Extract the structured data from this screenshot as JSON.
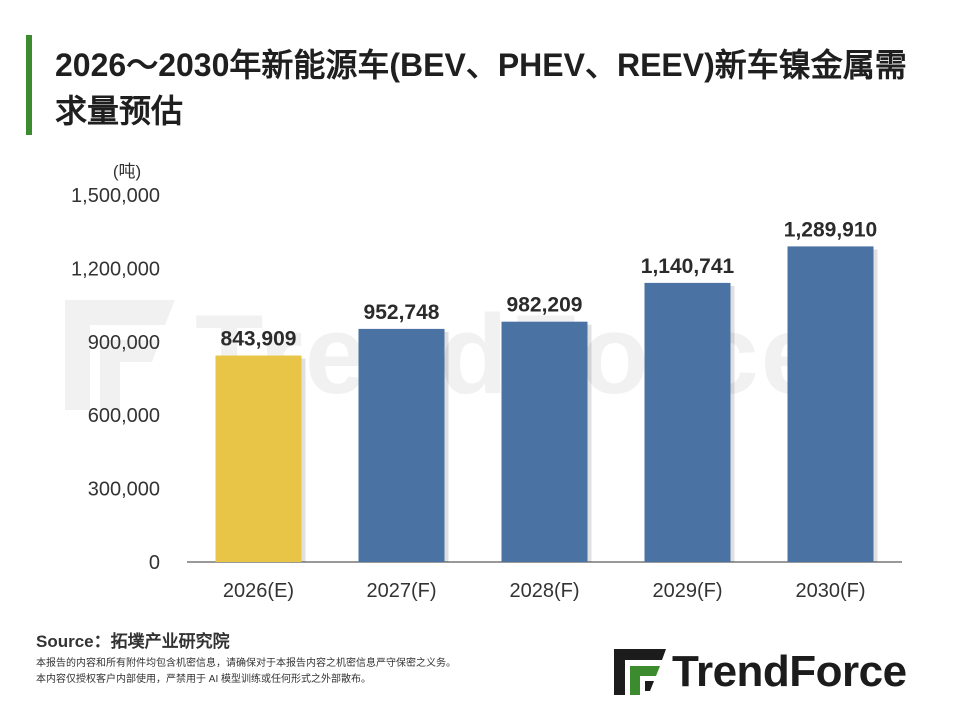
{
  "header": {
    "title": "2026～2030年新能源车(BEV、PHEV、REEV)新车镍金属需求量预估"
  },
  "chart_data": {
    "type": "bar",
    "title": "2026～2030年新能源车(BEV、PHEV、REEV)新车镍金属需求量预估",
    "ylabel": "(吨)",
    "xlabel": "",
    "categories": [
      "2026(E)",
      "2027(F)",
      "2028(F)",
      "2029(F)",
      "2030(F)"
    ],
    "values": [
      843909,
      952748,
      982209,
      1140741,
      1289910
    ],
    "value_labels": [
      "843,909",
      "952,748",
      "982,209",
      "1,140,741",
      "1,289,910"
    ],
    "bar_colors": [
      "#e8c547",
      "#4a72a3",
      "#4a72a3",
      "#4a72a3",
      "#4a72a3"
    ],
    "ylim": [
      0,
      1500000
    ],
    "yticks": [
      0,
      300000,
      600000,
      900000,
      1200000,
      1500000
    ],
    "ytick_labels": [
      "0",
      "300,000",
      "600,000",
      "900,000",
      "1,200,000",
      "1,500,000"
    ],
    "grid": false,
    "legend": "none"
  },
  "footer": {
    "source": "Source：拓墣产业研究院",
    "note_line1": "本报告的内容和所有附件均包含机密信息，请确保对于本报告内容之机密信息严守保密之义务。",
    "note_line2": "本内容仅授权客户内部使用，严禁用于 AI 模型训练或任何形式之外部散布。"
  },
  "brand": {
    "logo_text": "TrendForce",
    "accent_color": "#3d8b2f"
  }
}
